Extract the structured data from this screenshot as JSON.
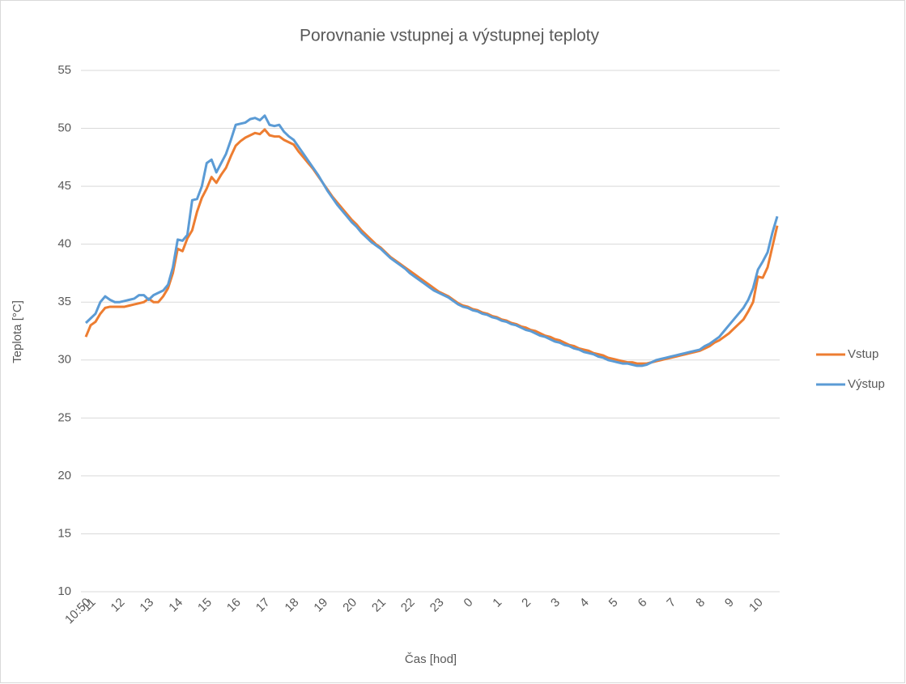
{
  "chart_data": {
    "type": "line",
    "title": "Porovnanie vstupnej a výstupnej teploty",
    "xlabel": "Čas [hod]",
    "ylabel": "Teplota [°C]",
    "categories": [
      "10:50",
      "11",
      null,
      null,
      null,
      null,
      null,
      "12",
      null,
      null,
      null,
      null,
      null,
      "13",
      null,
      null,
      null,
      null,
      null,
      "14",
      null,
      null,
      null,
      null,
      null,
      "15",
      null,
      null,
      null,
      null,
      null,
      "16",
      null,
      null,
      null,
      null,
      null,
      "17",
      null,
      null,
      null,
      null,
      null,
      "18",
      null,
      null,
      null,
      null,
      null,
      "19",
      null,
      null,
      null,
      null,
      null,
      "20",
      null,
      null,
      null,
      null,
      null,
      "21",
      null,
      null,
      null,
      null,
      null,
      "22",
      null,
      null,
      null,
      null,
      null,
      "23",
      null,
      null,
      null,
      null,
      null,
      "0",
      null,
      null,
      null,
      null,
      null,
      "1",
      null,
      null,
      null,
      null,
      null,
      "2",
      null,
      null,
      null,
      null,
      null,
      "3",
      null,
      null,
      null,
      null,
      null,
      "4",
      null,
      null,
      null,
      null,
      null,
      "5",
      null,
      null,
      null,
      null,
      null,
      "6",
      null,
      null,
      null,
      null,
      null,
      "7",
      null,
      null,
      null,
      null,
      null,
      "8",
      null,
      null,
      null,
      null,
      null,
      "9",
      null,
      null,
      null,
      null,
      null,
      "10",
      null,
      null,
      null,
      null
    ],
    "series": [
      {
        "name": "Vstup",
        "color": "#ed7d31",
        "values": [
          32.0,
          33.0,
          33.3,
          34.0,
          34.5,
          34.6,
          34.6,
          34.6,
          34.6,
          34.7,
          34.8,
          34.9,
          35.0,
          35.3,
          35.0,
          35.0,
          35.5,
          36.2,
          37.5,
          39.6,
          39.4,
          40.5,
          41.2,
          42.8,
          44.0,
          44.8,
          45.8,
          45.3,
          46.0,
          46.6,
          47.6,
          48.5,
          48.9,
          49.2,
          49.4,
          49.6,
          49.5,
          49.9,
          49.4,
          49.3,
          49.3,
          49.0,
          48.8,
          48.6,
          48.0,
          47.5,
          47.0,
          46.5,
          45.9,
          45.3,
          44.7,
          44.1,
          43.6,
          43.1,
          42.6,
          42.1,
          41.7,
          41.2,
          40.8,
          40.4,
          40.0,
          39.7,
          39.3,
          38.9,
          38.6,
          38.3,
          38.0,
          37.7,
          37.4,
          37.1,
          36.8,
          36.5,
          36.2,
          35.9,
          35.7,
          35.5,
          35.2,
          34.9,
          34.7,
          34.6,
          34.4,
          34.3,
          34.1,
          34.0,
          33.8,
          33.7,
          33.5,
          33.4,
          33.2,
          33.1,
          32.9,
          32.8,
          32.6,
          32.5,
          32.3,
          32.1,
          32.0,
          31.8,
          31.7,
          31.5,
          31.3,
          31.2,
          31.0,
          30.9,
          30.8,
          30.6,
          30.5,
          30.4,
          30.2,
          30.1,
          30.0,
          29.9,
          29.8,
          29.8,
          29.7,
          29.7,
          29.7,
          29.8,
          29.9,
          30.0,
          30.1,
          30.2,
          30.3,
          30.4,
          30.5,
          30.6,
          30.7,
          30.8,
          31.0,
          31.2,
          31.5,
          31.7,
          32.0,
          32.3,
          32.7,
          33.1,
          33.5,
          34.2,
          35.0,
          37.2,
          37.1,
          38.0,
          39.8,
          41.6
        ]
      },
      {
        "name": "Výstup",
        "color": "#5b9bd5",
        "values": [
          33.2,
          33.6,
          34.0,
          35.0,
          35.5,
          35.2,
          35.0,
          35.0,
          35.1,
          35.2,
          35.3,
          35.6,
          35.6,
          35.2,
          35.6,
          35.8,
          36.0,
          36.5,
          38.0,
          40.4,
          40.3,
          40.8,
          43.8,
          43.9,
          45.0,
          47.0,
          47.3,
          46.2,
          47.0,
          47.8,
          49.0,
          50.3,
          50.4,
          50.5,
          50.8,
          50.9,
          50.7,
          51.1,
          50.3,
          50.2,
          50.3,
          49.7,
          49.3,
          49.0,
          48.4,
          47.8,
          47.2,
          46.6,
          46.0,
          45.3,
          44.6,
          44.0,
          43.4,
          42.9,
          42.4,
          41.9,
          41.5,
          41.0,
          40.6,
          40.2,
          39.9,
          39.6,
          39.2,
          38.8,
          38.5,
          38.2,
          37.9,
          37.5,
          37.2,
          36.9,
          36.6,
          36.3,
          36.0,
          35.8,
          35.6,
          35.4,
          35.1,
          34.8,
          34.6,
          34.5,
          34.3,
          34.2,
          34.0,
          33.9,
          33.7,
          33.6,
          33.4,
          33.3,
          33.1,
          33.0,
          32.8,
          32.6,
          32.5,
          32.3,
          32.1,
          32.0,
          31.8,
          31.6,
          31.5,
          31.3,
          31.2,
          31.0,
          30.9,
          30.7,
          30.6,
          30.5,
          30.3,
          30.2,
          30.0,
          29.9,
          29.8,
          29.7,
          29.7,
          29.6,
          29.5,
          29.5,
          29.6,
          29.8,
          30.0,
          30.1,
          30.2,
          30.3,
          30.4,
          30.5,
          30.6,
          30.7,
          30.8,
          30.9,
          31.2,
          31.4,
          31.7,
          32.0,
          32.5,
          33.0,
          33.5,
          34.0,
          34.5,
          35.2,
          36.2,
          37.8,
          38.5,
          39.3,
          41.0,
          42.4
        ]
      }
    ],
    "ylim": [
      10,
      55
    ],
    "yticks": [
      10,
      15,
      20,
      25,
      30,
      35,
      40,
      45,
      50,
      55
    ],
    "grid": true,
    "legend": "right"
  }
}
